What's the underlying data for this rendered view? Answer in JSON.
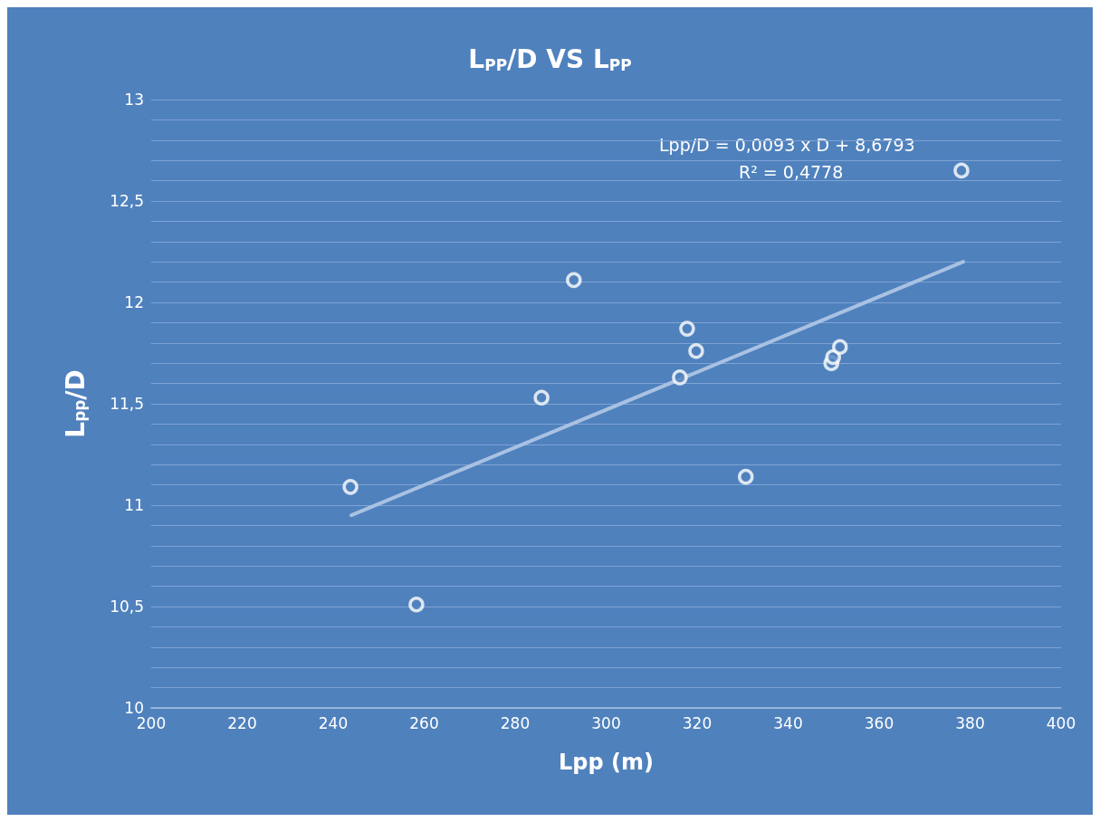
{
  "chart_data": {
    "type": "scatter",
    "title": "L$_{PP}$/D VS L$_{PP}$",
    "xlabel": "Lpp (m)",
    "ylabel": "L$_{pp}$/D",
    "annotations": [
      "Lpp/D = 0,0093 x D + 8,6793",
      "R² = 0,4778"
    ],
    "series": [
      {
        "marker": "circle",
        "color": "#ffffff",
        "x": [
          243.8,
          258.3,
          285.8,
          292.9,
          316.2,
          317.8,
          319.8,
          330.7,
          349.5,
          349.9,
          351.4,
          378.1
        ],
        "values": [
          11.09,
          10.51,
          11.53,
          12.11,
          11.63,
          11.87,
          11.76,
          11.14,
          11.7,
          11.73,
          11.78,
          12.65
        ]
      },
      {
        "type": "line",
        "marker": "none",
        "color": "#a9c1e2",
        "x": [
          244,
          378.5
        ],
        "values": [
          10.95,
          12.2
        ]
      }
    ],
    "xlim": [
      200,
      400
    ],
    "xticks": [
      200,
      220,
      240,
      260,
      280,
      300,
      320,
      340,
      360,
      380,
      400
    ],
    "ylim": [
      10,
      13
    ],
    "yticks": [
      {
        "value": 10,
        "label": "10"
      },
      {
        "value": 10.1,
        "label": null
      },
      {
        "value": 10.2,
        "label": null
      },
      {
        "value": 10.3,
        "label": null
      },
      {
        "value": 10.4,
        "label": null
      },
      {
        "value": 10.5,
        "label": "10,5"
      },
      {
        "value": 10.6,
        "label": null
      },
      {
        "value": 10.7,
        "label": null
      },
      {
        "value": 10.8,
        "label": null
      },
      {
        "value": 10.9,
        "label": null
      },
      {
        "value": 11,
        "label": "11"
      },
      {
        "value": 11.1,
        "label": null
      },
      {
        "value": 11.2,
        "label": null
      },
      {
        "value": 11.3,
        "label": null
      },
      {
        "value": 11.4,
        "label": null
      },
      {
        "value": 11.5,
        "label": "11,5"
      },
      {
        "value": 11.6,
        "label": null
      },
      {
        "value": 11.7,
        "label": null
      },
      {
        "value": 11.8,
        "label": null
      },
      {
        "value": 11.9,
        "label": null
      },
      {
        "value": 12,
        "label": "12"
      },
      {
        "value": 12.1,
        "label": null
      },
      {
        "value": 12.2,
        "label": null
      },
      {
        "value": 12.3,
        "label": null
      },
      {
        "value": 12.4,
        "label": null
      },
      {
        "value": 12.5,
        "label": "12,5"
      },
      {
        "value": 12.6,
        "label": null
      },
      {
        "value": 12.7,
        "label": null
      },
      {
        "value": 12.8,
        "label": null
      },
      {
        "value": 12.9,
        "label": null
      },
      {
        "value": 13,
        "label": "13"
      }
    ],
    "grid": "y"
  }
}
